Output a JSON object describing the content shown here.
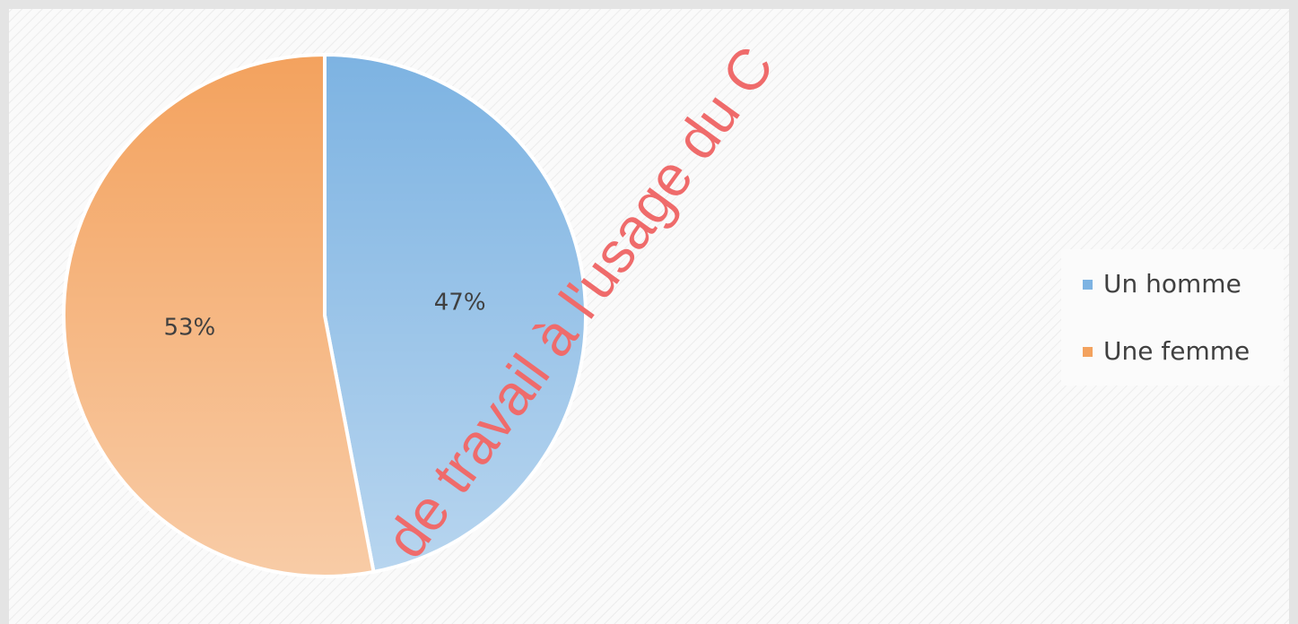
{
  "chart_data": {
    "type": "pie",
    "categories": [
      "Un homme",
      "Une femme"
    ],
    "values": [
      47,
      53
    ],
    "value_labels": [
      "47%",
      "53%"
    ],
    "colors": [
      "#7db3e2",
      "#f3a25e"
    ],
    "legend": "right",
    "watermark": "de travail à l'usage du C"
  }
}
